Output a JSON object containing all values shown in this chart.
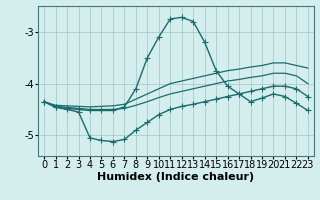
{
  "xlabel": "Humidex (Indice chaleur)",
  "bg_color": "#d4eeed",
  "grid_color": "#aacccc",
  "line_color": "#1a6b6b",
  "xlim": [
    -0.5,
    23.5
  ],
  "ylim": [
    -5.4,
    -2.5
  ],
  "yticks": [
    -5,
    -4,
    -3
  ],
  "xticks": [
    0,
    1,
    2,
    3,
    4,
    5,
    6,
    7,
    8,
    9,
    10,
    11,
    12,
    13,
    14,
    15,
    16,
    17,
    18,
    19,
    20,
    21,
    22,
    23
  ],
  "x": [
    0,
    1,
    2,
    3,
    4,
    5,
    6,
    7,
    8,
    9,
    10,
    11,
    12,
    13,
    14,
    15,
    16,
    17,
    18,
    19,
    20,
    21,
    22,
    23
  ],
  "line_peak": [
    -4.35,
    -4.45,
    -4.48,
    -4.5,
    -4.52,
    -4.52,
    -4.52,
    -4.45,
    -4.1,
    -3.5,
    -3.1,
    -2.75,
    -2.72,
    -2.8,
    -3.2,
    -3.75,
    -4.05,
    -4.2,
    -4.35,
    -4.28,
    -4.2,
    -4.25,
    -4.38,
    -4.52
  ],
  "line_upper": [
    -4.35,
    -4.42,
    -4.43,
    -4.44,
    -4.45,
    -4.44,
    -4.43,
    -4.4,
    -4.3,
    -4.2,
    -4.1,
    -4.0,
    -3.95,
    -3.9,
    -3.85,
    -3.8,
    -3.75,
    -3.72,
    -3.68,
    -3.65,
    -3.6,
    -3.6,
    -3.65,
    -3.7
  ],
  "line_mid": [
    -4.35,
    -4.44,
    -4.46,
    -4.48,
    -4.5,
    -4.5,
    -4.5,
    -4.48,
    -4.42,
    -4.35,
    -4.27,
    -4.2,
    -4.15,
    -4.1,
    -4.05,
    -4.0,
    -3.95,
    -3.92,
    -3.88,
    -3.85,
    -3.8,
    -3.8,
    -3.85,
    -4.0
  ],
  "line_lower": [
    -4.35,
    -4.46,
    -4.5,
    -4.55,
    -5.05,
    -5.1,
    -5.12,
    -5.08,
    -4.9,
    -4.75,
    -4.6,
    -4.5,
    -4.44,
    -4.4,
    -4.35,
    -4.3,
    -4.25,
    -4.2,
    -4.15,
    -4.1,
    -4.05,
    -4.05,
    -4.1,
    -4.25
  ],
  "xlabel_fontsize": 8,
  "tick_fontsize": 7
}
